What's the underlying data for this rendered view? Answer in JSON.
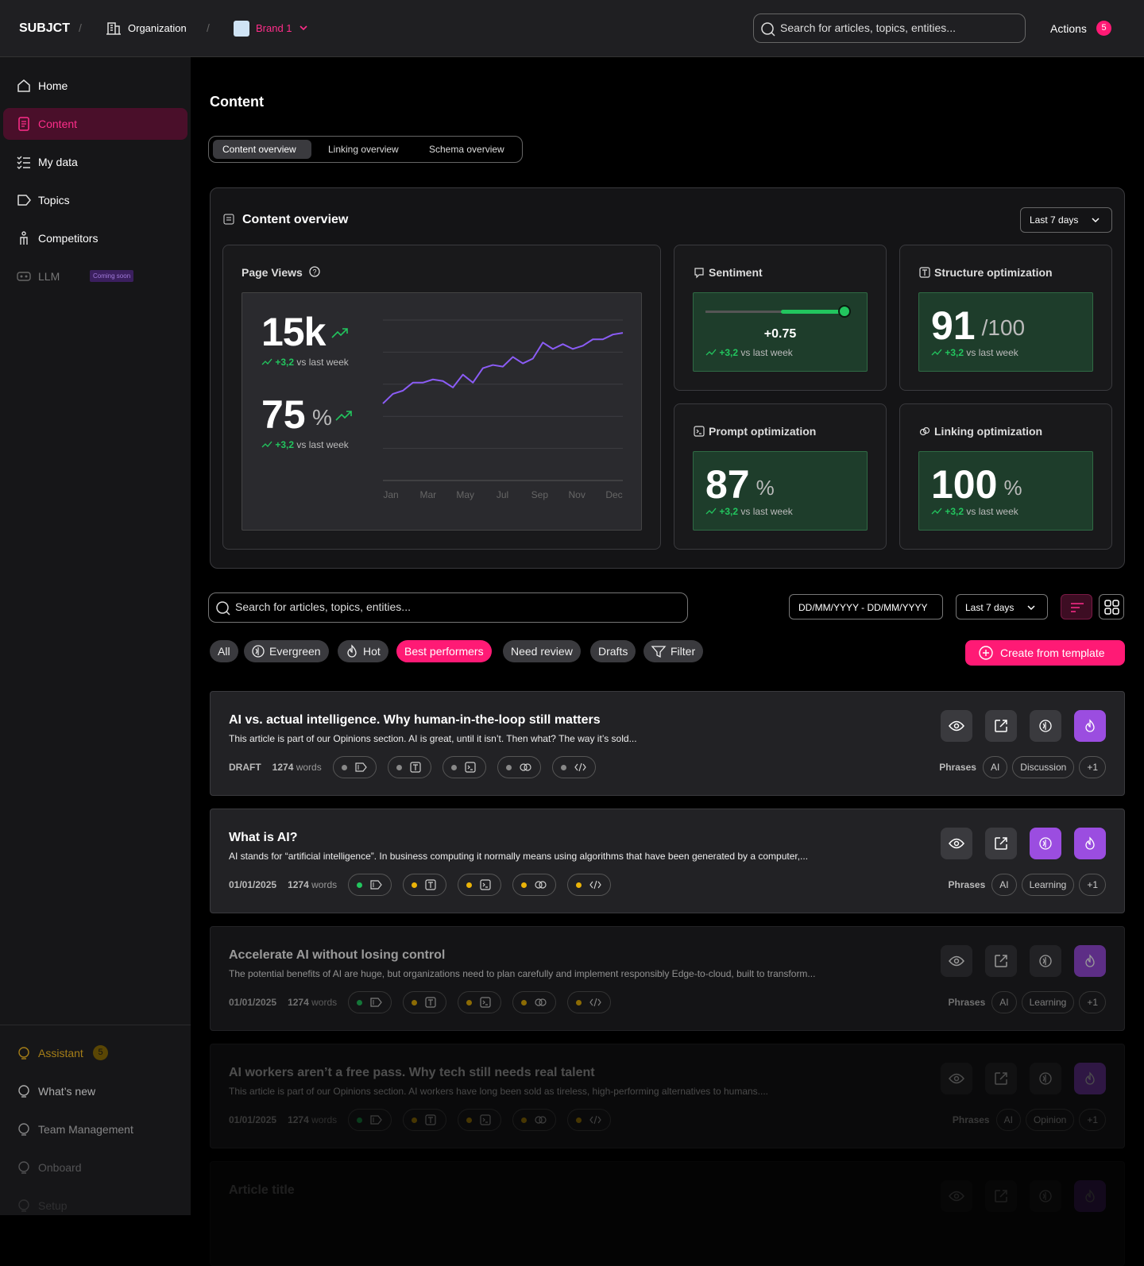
{
  "topbar": {
    "logo": "SUBJCT",
    "separator": "/",
    "organization": "Organization",
    "brand": "Brand 1",
    "search_placeholder": "Search for articles, topics, entities...",
    "actions": "Actions",
    "actions_count": 5
  },
  "sidebar": {
    "nav": [
      "Home",
      "Content",
      "My data",
      "Topics",
      "Competitors",
      "LLM"
    ],
    "llm_badge": "Coming soon",
    "bottom": [
      "Assistant",
      "What’s new",
      "Team Management",
      "Onboard",
      "Setup"
    ],
    "assistant_count": 5
  },
  "page": {
    "title": "Content",
    "tabs": [
      "Content overview",
      "Linking overview",
      "Schema overview"
    ]
  },
  "overview": {
    "title": "Content overview",
    "period": "Last 7 days",
    "page_views": {
      "label": "Page Views",
      "views": "15k",
      "views_change": "+3,2",
      "rate": 75,
      "rate_unit": "%",
      "rate_change": "+3,2",
      "change_text": "vs last week",
      "chart": {
        "type": "line",
        "color": "#8b5cf6",
        "x_labels": [
          "Jan",
          "Mar",
          "May",
          "Jul",
          "Sep",
          "Nov",
          "Dec"
        ],
        "values": [
          48,
          54,
          56,
          61,
          61,
          63,
          62,
          58,
          66,
          61,
          70,
          72,
          71,
          77,
          73,
          76,
          86,
          82,
          85,
          82,
          84,
          88,
          88,
          91,
          92
        ],
        "ylim": [
          0,
          100
        ],
        "yticks": [
          0,
          20,
          40,
          60,
          80,
          100
        ],
        "grid": true
      }
    },
    "sentiment": {
      "label": "Sentiment",
      "value": "+0.75",
      "change": "+3,2",
      "change_text": "vs last week"
    },
    "structure": {
      "label": "Structure optimization",
      "value": 91,
      "unit": "/100",
      "change": "+3,2",
      "change_text": "vs last week"
    },
    "prompt": {
      "label": "Prompt optimization",
      "value": 87,
      "unit": "%",
      "change": "+3,2",
      "change_text": "vs last week"
    },
    "linking": {
      "label": "Linking optimization",
      "value": 100,
      "unit": "%",
      "change": "+3,2",
      "change_text": "vs last week"
    }
  },
  "filters": {
    "search_placeholder": "Search for articles, topics, entities...",
    "date_range": "DD/MM/YYYY - DD/MM/YYYY",
    "period": "Last 7 days",
    "chips": [
      "All",
      "Evergreen",
      "Hot",
      "Best performers",
      "Need review",
      "Drafts",
      "Filter"
    ],
    "create": "Create from template"
  },
  "articles": [
    {
      "title": "AI vs. actual intelligence. Why human-in-the-loop still matters",
      "description": "This article is part of our Opinions section. AI is great, until it isn’t. Then what? The way it’s sold...",
      "status": "DRAFT",
      "words": 1274,
      "words_label": "words",
      "phrases_label": "Phrases",
      "phrases": [
        "AI",
        "Discussion",
        "+1"
      ]
    },
    {
      "title": "What is AI?",
      "description": "AI stands for “artificial intelligence”. In business computing it normally means using algorithms that have been generated by a computer,...",
      "status": "01/01/2025",
      "words": 1274,
      "words_label": "words",
      "phrases_label": "Phrases",
      "phrases": [
        "AI",
        "Learning",
        "+1"
      ]
    },
    {
      "title": "Accelerate AI without losing control",
      "description": "The potential benefits of AI are huge, but organizations need to plan carefully and implement responsibly Edge-to-cloud, built to transform...",
      "status": "01/01/2025",
      "words": 1274,
      "words_label": "words",
      "phrases_label": "Phrases",
      "phrases": [
        "AI",
        "Learning",
        "+1"
      ]
    },
    {
      "title": "AI workers aren’t a free pass. Why tech still needs real talent",
      "description": "This article is part of our Opinions section. AI workers have long been sold as tireless, high-performing alternatives to humans....",
      "status": "01/01/2025",
      "words": 1274,
      "words_label": "words",
      "phrases_label": "Phrases",
      "phrases": [
        "AI",
        "Opinion",
        "+1"
      ]
    },
    {
      "title": "Article title"
    }
  ]
}
